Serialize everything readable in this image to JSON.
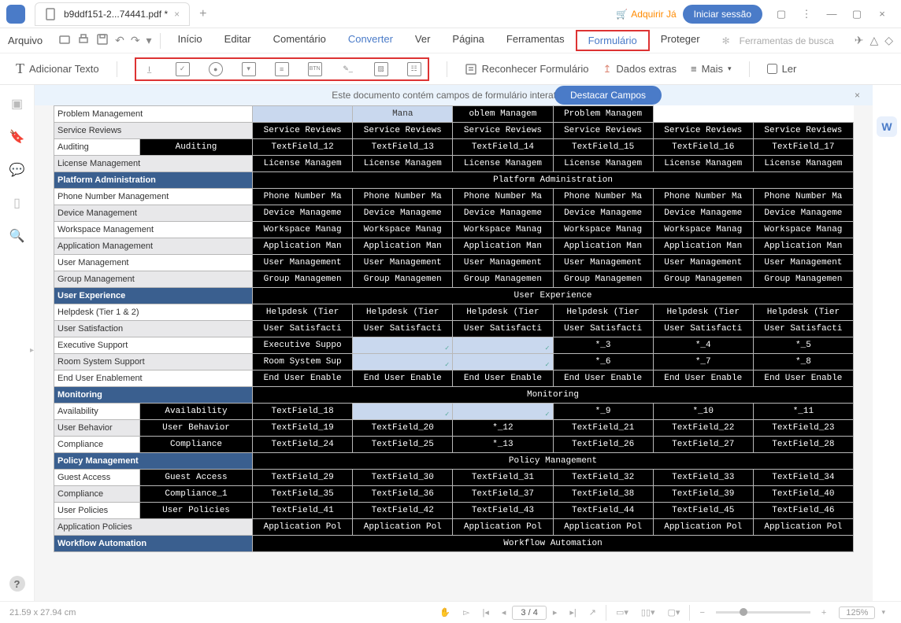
{
  "titlebar": {
    "filename": "b9ddf151-2...74441.pdf *",
    "adquirir": "Adquirir Já",
    "login": "Iniciar sessão"
  },
  "menubar": {
    "file": "Arquivo",
    "items": [
      "Início",
      "Editar",
      "Comentário",
      "Converter",
      "Ver",
      "Página",
      "Ferramentas",
      "Formulário",
      "Proteger"
    ],
    "active_index": 3,
    "boxed_index": 7,
    "search": "Ferramentas de busca"
  },
  "toolbar": {
    "add_text": "Adicionar Texto",
    "recognize": "Reconhecer Formulário",
    "extra": "Dados extras",
    "more": "Mais",
    "read": "Ler"
  },
  "banner": {
    "msg": "Este documento contém campos de formulário interativos.",
    "pill": "Destacar Campos"
  },
  "sections": [
    {
      "rows": [
        {
          "label": "Problem Management",
          "alt": false,
          "cells": [
            {
              "t": "",
              "c": "lite"
            },
            {
              "t": "Mana",
              "c": "lite",
              "partial": true
            },
            {
              "t": "oblem Managem",
              "c": "field"
            },
            {
              "t": "Problem Managem",
              "c": "field"
            }
          ],
          "first_span": 5
        },
        {
          "label": "Service Reviews",
          "alt": true,
          "cells": [
            {
              "t": "Service Reviews",
              "c": "field"
            },
            {
              "t": "Service Reviews",
              "c": "field"
            },
            {
              "t": "Service Reviews",
              "c": "field"
            },
            {
              "t": "Service Reviews",
              "c": "field"
            },
            {
              "t": "Service Reviews",
              "c": "field"
            },
            {
              "t": "Service Reviews",
              "c": "field"
            }
          ]
        },
        {
          "label": "Auditing",
          "alt": false,
          "pre": {
            "t": "Auditing",
            "c": "field"
          },
          "cells": [
            {
              "t": "TextField_12",
              "c": "field"
            },
            {
              "t": "TextField_13",
              "c": "field"
            },
            {
              "t": "TextField_14",
              "c": "field"
            },
            {
              "t": "TextField_15",
              "c": "field"
            },
            {
              "t": "TextField_16",
              "c": "field"
            },
            {
              "t": "TextField_17",
              "c": "field"
            }
          ]
        },
        {
          "label": "License Management",
          "alt": true,
          "cells": [
            {
              "t": "License Managem",
              "c": "field"
            },
            {
              "t": "License Managem",
              "c": "field"
            },
            {
              "t": "License Managem",
              "c": "field"
            },
            {
              "t": "License Managem",
              "c": "field"
            },
            {
              "t": "License Managem",
              "c": "field"
            },
            {
              "t": "License Managem",
              "c": "field"
            }
          ]
        }
      ]
    },
    {
      "header": "Platform Administration",
      "header_field": "Platform Administration",
      "rows": [
        {
          "label": "Phone Number Management",
          "alt": false,
          "cells": [
            {
              "t": "Phone Number Ma",
              "c": "field"
            },
            {
              "t": "Phone Number Ma",
              "c": "field"
            },
            {
              "t": "Phone Number Ma",
              "c": "field"
            },
            {
              "t": "Phone Number Ma",
              "c": "field"
            },
            {
              "t": "Phone Number Ma",
              "c": "field"
            },
            {
              "t": "Phone Number Ma",
              "c": "field"
            }
          ]
        },
        {
          "label": "Device Management",
          "alt": true,
          "cells": [
            {
              "t": "Device Manageme",
              "c": "field"
            },
            {
              "t": "Device Manageme",
              "c": "field"
            },
            {
              "t": "Device Manageme",
              "c": "field"
            },
            {
              "t": "Device Manageme",
              "c": "field"
            },
            {
              "t": "Device Manageme",
              "c": "field"
            },
            {
              "t": "Device Manageme",
              "c": "field"
            }
          ]
        },
        {
          "label": "Workspace Management",
          "alt": false,
          "cells": [
            {
              "t": "Workspace Manag",
              "c": "field"
            },
            {
              "t": "Workspace Manag",
              "c": "field"
            },
            {
              "t": "Workspace Manag",
              "c": "field"
            },
            {
              "t": "Workspace Manag",
              "c": "field"
            },
            {
              "t": "Workspace Manag",
              "c": "field"
            },
            {
              "t": "Workspace Manag",
              "c": "field"
            }
          ]
        },
        {
          "label": "Application Management",
          "alt": true,
          "cells": [
            {
              "t": "Application Man",
              "c": "field"
            },
            {
              "t": "Application Man",
              "c": "field"
            },
            {
              "t": "Application Man",
              "c": "field"
            },
            {
              "t": "Application Man",
              "c": "field"
            },
            {
              "t": "Application Man",
              "c": "field"
            },
            {
              "t": "Application Man",
              "c": "field"
            }
          ]
        },
        {
          "label": "User Management",
          "alt": false,
          "cells": [
            {
              "t": "User Management",
              "c": "field"
            },
            {
              "t": "User Management",
              "c": "field"
            },
            {
              "t": "User Management",
              "c": "field"
            },
            {
              "t": "User Management",
              "c": "field"
            },
            {
              "t": "User Management",
              "c": "field"
            },
            {
              "t": "User Management",
              "c": "field"
            }
          ]
        },
        {
          "label": "Group Management",
          "alt": true,
          "cells": [
            {
              "t": "Group Managemen",
              "c": "field"
            },
            {
              "t": "Group Managemen",
              "c": "field"
            },
            {
              "t": "Group Managemen",
              "c": "field"
            },
            {
              "t": "Group Managemen",
              "c": "field"
            },
            {
              "t": "Group Managemen",
              "c": "field"
            },
            {
              "t": "Group Managemen",
              "c": "field"
            }
          ]
        }
      ]
    },
    {
      "header": "User Experience",
      "header_field": "User Experience",
      "rows": [
        {
          "label": "Helpdesk (Tier 1 & 2)",
          "alt": false,
          "cells": [
            {
              "t": "Helpdesk (Tier",
              "c": "field"
            },
            {
              "t": "Helpdesk (Tier",
              "c": "field"
            },
            {
              "t": "Helpdesk (Tier",
              "c": "field"
            },
            {
              "t": "Helpdesk (Tier",
              "c": "field"
            },
            {
              "t": "Helpdesk (Tier",
              "c": "field"
            },
            {
              "t": "Helpdesk (Tier",
              "c": "field"
            }
          ]
        },
        {
          "label": "User Satisfaction",
          "alt": true,
          "cells": [
            {
              "t": "User Satisfacti",
              "c": "field"
            },
            {
              "t": "User Satisfacti",
              "c": "field"
            },
            {
              "t": "User Satisfacti",
              "c": "field"
            },
            {
              "t": "User Satisfacti",
              "c": "field"
            },
            {
              "t": "User Satisfacti",
              "c": "field"
            },
            {
              "t": "User Satisfacti",
              "c": "field"
            }
          ]
        },
        {
          "label": "Executive Support",
          "alt": false,
          "cells": [
            {
              "t": "Executive Suppo",
              "c": "field"
            },
            {
              "t": "",
              "c": "lite",
              "tick": true
            },
            {
              "t": "",
              "c": "lite",
              "tick": true
            },
            {
              "t": "*_3",
              "c": "field"
            },
            {
              "t": "*_4",
              "c": "field"
            },
            {
              "t": "*_5",
              "c": "field"
            }
          ]
        },
        {
          "label": "Room System Support",
          "alt": true,
          "cells": [
            {
              "t": "Room System Sup",
              "c": "field"
            },
            {
              "t": "",
              "c": "lite",
              "tick": true
            },
            {
              "t": "",
              "c": "lite",
              "tick": true
            },
            {
              "t": "*_6",
              "c": "field"
            },
            {
              "t": "*_7",
              "c": "field"
            },
            {
              "t": "*_8",
              "c": "field"
            }
          ]
        },
        {
          "label": "End User Enablement",
          "alt": false,
          "cells": [
            {
              "t": "End User Enable",
              "c": "field"
            },
            {
              "t": "End User Enable",
              "c": "field"
            },
            {
              "t": "End User Enable",
              "c": "field"
            },
            {
              "t": "End User Enable",
              "c": "field"
            },
            {
              "t": "End User Enable",
              "c": "field"
            },
            {
              "t": "End User Enable",
              "c": "field"
            }
          ]
        }
      ]
    },
    {
      "header": "Monitoring",
      "header_field": "Monitoring",
      "rows": [
        {
          "label": "Availability",
          "alt": false,
          "pre": {
            "t": "Availability",
            "c": "field"
          },
          "cells": [
            {
              "t": "TextField_18",
              "c": "field"
            },
            {
              "t": "",
              "c": "lite",
              "tick": true
            },
            {
              "t": "",
              "c": "lite",
              "tick": true
            },
            {
              "t": "*_9",
              "c": "field"
            },
            {
              "t": "*_10",
              "c": "field"
            },
            {
              "t": "*_11",
              "c": "field"
            }
          ]
        },
        {
          "label": "User Behavior",
          "alt": true,
          "pre": {
            "t": "User Behavior",
            "c": "field"
          },
          "cells": [
            {
              "t": "TextField_19",
              "c": "field"
            },
            {
              "t": "TextField_20",
              "c": "field"
            },
            {
              "t": "*_12",
              "c": "field"
            },
            {
              "t": "TextField_21",
              "c": "field"
            },
            {
              "t": "TextField_22",
              "c": "field"
            },
            {
              "t": "TextField_23",
              "c": "field"
            }
          ]
        },
        {
          "label": "Compliance",
          "alt": false,
          "pre": {
            "t": "Compliance",
            "c": "field"
          },
          "cells": [
            {
              "t": "TextField_24",
              "c": "field"
            },
            {
              "t": "TextField_25",
              "c": "field"
            },
            {
              "t": "*_13",
              "c": "field"
            },
            {
              "t": "TextField_26",
              "c": "field"
            },
            {
              "t": "TextField_27",
              "c": "field"
            },
            {
              "t": "TextField_28",
              "c": "field"
            }
          ]
        }
      ]
    },
    {
      "header": "Policy Management",
      "header_field": "Policy Management",
      "rows": [
        {
          "label": "Guest Access",
          "alt": false,
          "pre": {
            "t": "Guest Access",
            "c": "field"
          },
          "cells": [
            {
              "t": "TextField_29",
              "c": "field"
            },
            {
              "t": "TextField_30",
              "c": "field"
            },
            {
              "t": "TextField_31",
              "c": "field"
            },
            {
              "t": "TextField_32",
              "c": "field"
            },
            {
              "t": "TextField_33",
              "c": "field"
            },
            {
              "t": "TextField_34",
              "c": "field"
            }
          ]
        },
        {
          "label": "Compliance",
          "alt": true,
          "pre": {
            "t": "Compliance_1",
            "c": "field"
          },
          "cells": [
            {
              "t": "TextField_35",
              "c": "field"
            },
            {
              "t": "TextField_36",
              "c": "field"
            },
            {
              "t": "TextField_37",
              "c": "field"
            },
            {
              "t": "TextField_38",
              "c": "field"
            },
            {
              "t": "TextField_39",
              "c": "field"
            },
            {
              "t": "TextField_40",
              "c": "field"
            }
          ]
        },
        {
          "label": "User Policies",
          "alt": false,
          "pre": {
            "t": "User Policies",
            "c": "field"
          },
          "cells": [
            {
              "t": "TextField_41",
              "c": "field"
            },
            {
              "t": "TextField_42",
              "c": "field"
            },
            {
              "t": "TextField_43",
              "c": "field"
            },
            {
              "t": "TextField_44",
              "c": "field"
            },
            {
              "t": "TextField_45",
              "c": "field"
            },
            {
              "t": "TextField_46",
              "c": "field"
            }
          ]
        },
        {
          "label": "Application Policies",
          "alt": true,
          "cells": [
            {
              "t": "Application Pol",
              "c": "field"
            },
            {
              "t": "Application Pol",
              "c": "field"
            },
            {
              "t": "Application Pol",
              "c": "field"
            },
            {
              "t": "Application Pol",
              "c": "field"
            },
            {
              "t": "Application Pol",
              "c": "field"
            },
            {
              "t": "Application Pol",
              "c": "field"
            }
          ]
        }
      ]
    },
    {
      "header": "Workflow Automation",
      "header_field": "Workflow Automation",
      "rows": []
    }
  ],
  "status": {
    "dims": "21.59 x 27.94 cm",
    "page": "3 / 4",
    "zoom": "125%"
  }
}
